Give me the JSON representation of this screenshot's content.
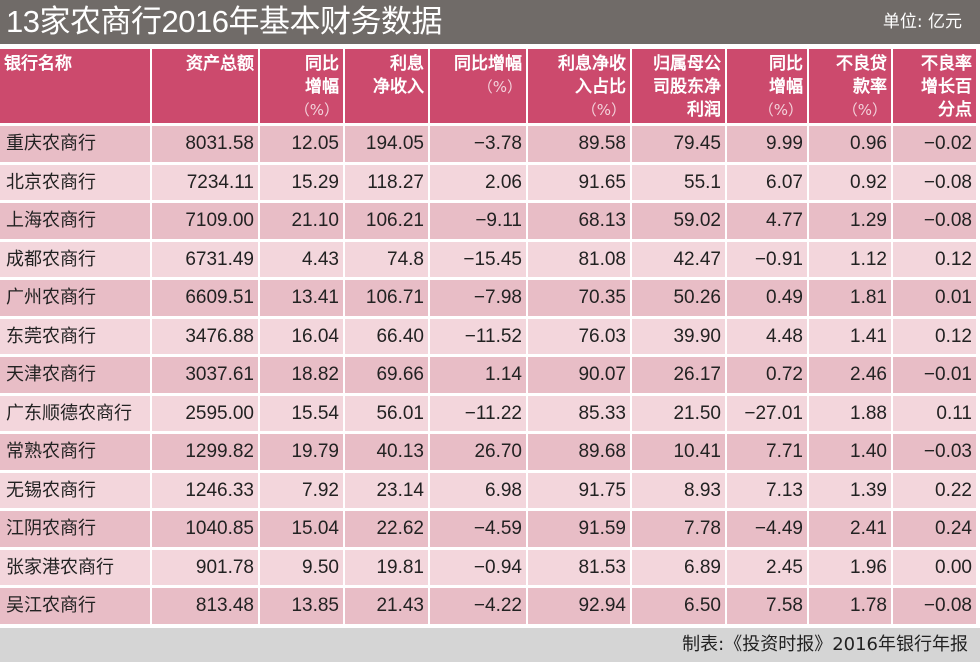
{
  "title": "13家农商行2016年基本财务数据",
  "unit": "单位: 亿元",
  "columns": [
    {
      "lines": [
        "银行名称"
      ],
      "pct": ""
    },
    {
      "lines": [
        "资产总额"
      ],
      "pct": ""
    },
    {
      "lines": [
        "同比",
        "增幅"
      ],
      "pct": "（%）"
    },
    {
      "lines": [
        "利息",
        "净收入"
      ],
      "pct": ""
    },
    {
      "lines": [
        "同比增幅"
      ],
      "pct": "（%）"
    },
    {
      "lines": [
        "利息净收",
        "入占比"
      ],
      "pct": "（%）"
    },
    {
      "lines": [
        "归属母公",
        "司股东净",
        "利润"
      ],
      "pct": ""
    },
    {
      "lines": [
        "同比",
        "增幅"
      ],
      "pct": "（%）"
    },
    {
      "lines": [
        "不良贷",
        "款率"
      ],
      "pct": "（%）"
    },
    {
      "lines": [
        "不良率",
        "增长百",
        "分点"
      ],
      "pct": ""
    }
  ],
  "rows": [
    [
      "重庆农商行",
      "8031.58",
      "12.05",
      "194.05",
      "−3.78",
      "89.58",
      "79.45",
      "9.99",
      "0.96",
      "−0.02"
    ],
    [
      "北京农商行",
      "7234.11",
      "15.29",
      "118.27",
      "2.06",
      "91.65",
      "55.1",
      "6.07",
      "0.92",
      "−0.08"
    ],
    [
      "上海农商行",
      "7109.00",
      "21.10",
      "106.21",
      "−9.11",
      "68.13",
      "59.02",
      "4.77",
      "1.29",
      "−0.08"
    ],
    [
      "成都农商行",
      "6731.49",
      "4.43",
      "74.8",
      "−15.45",
      "81.08",
      "42.47",
      "−0.91",
      "1.12",
      "0.12"
    ],
    [
      "广州农商行",
      "6609.51",
      "13.41",
      "106.71",
      "−7.98",
      "70.35",
      "50.26",
      "0.49",
      "1.81",
      "0.01"
    ],
    [
      "东莞农商行",
      "3476.88",
      "16.04",
      "66.40",
      "−11.52",
      "76.03",
      "39.90",
      "4.48",
      "1.41",
      "0.12"
    ],
    [
      "天津农商行",
      "3037.61",
      "18.82",
      "69.66",
      "1.14",
      "90.07",
      "26.17",
      "0.72",
      "2.46",
      "−0.01"
    ],
    [
      "广东顺德农商行",
      "2595.00",
      "15.54",
      "56.01",
      "−11.22",
      "85.33",
      "21.50",
      "−27.01",
      "1.88",
      "0.11"
    ],
    [
      "常熟农商行",
      "1299.82",
      "19.79",
      "40.13",
      "26.70",
      "89.68",
      "10.41",
      "7.71",
      "1.40",
      "−0.03"
    ],
    [
      "无锡农商行",
      "1246.33",
      "7.92",
      "23.14",
      "6.98",
      "91.75",
      "8.93",
      "7.13",
      "1.39",
      "0.22"
    ],
    [
      "江阴农商行",
      "1040.85",
      "15.04",
      "22.62",
      "−4.59",
      "91.59",
      "7.78",
      "−4.49",
      "2.41",
      "0.24"
    ],
    [
      "张家港农商行",
      "901.78",
      "9.50",
      "19.81",
      "−0.94",
      "81.53",
      "6.89",
      "2.45",
      "1.96",
      "0.00"
    ],
    [
      "吴江农商行",
      "813.48",
      "13.85",
      "21.43",
      "−4.22",
      "92.94",
      "6.50",
      "7.58",
      "1.78",
      "−0.08"
    ]
  ],
  "source": "制表:《投资时报》2016年银行年报",
  "colors": {
    "title_bar": "#706b68",
    "header_bg": "#cc4a6d",
    "row_odd": "#e8bdc6",
    "row_even": "#f3d6dc",
    "footer_bg": "#d5d5d5"
  }
}
